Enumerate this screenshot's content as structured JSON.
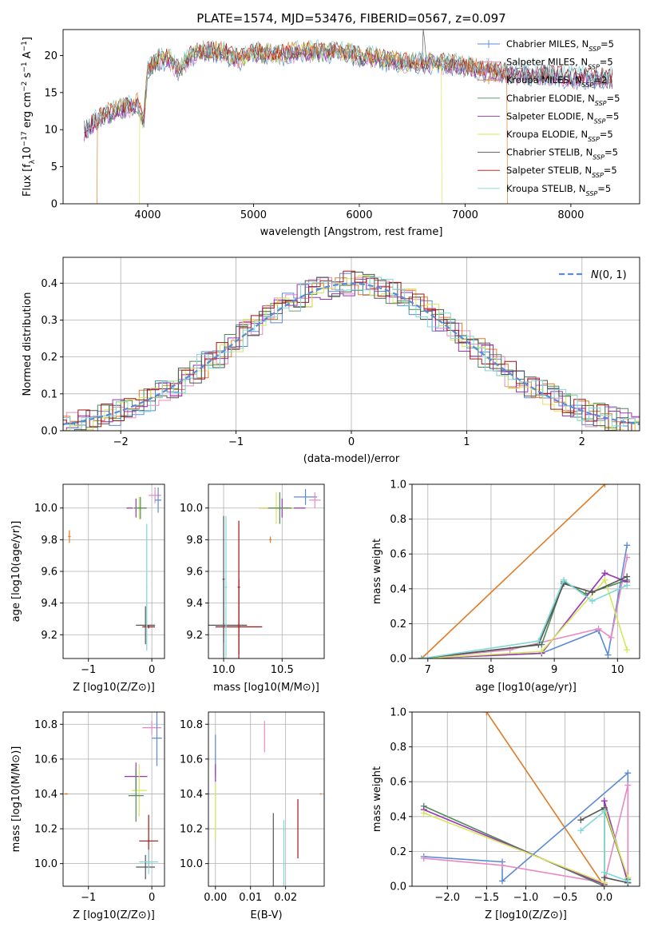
{
  "figure": {
    "title": "PLATE=1574, MJD=53476, FIBERID=0567, z=0.097"
  },
  "colors": {
    "chabrier_miles": "#5b8bd6",
    "salpeter_miles": "#e78ac3",
    "kroupa_miles": "#e07b26",
    "chabrier_elodie": "#4e8a5a",
    "salpeter_elodie": "#9b33b8",
    "kroupa_elodie": "#d4e85a",
    "chabrier_stelib": "#555555",
    "salpeter_stelib": "#a31515",
    "kroupa_stelib": "#7fd8d8",
    "gaussian": "#5b8bd6"
  },
  "chart_data": [
    {
      "id": "spectrum",
      "type": "line",
      "xlabel": "wavelength [Angstrom, rest frame]",
      "ylabel": "Flux [f_λ10^-17 erg cm^-2 s^-1 A^-1]",
      "xlim": [
        3200,
        8650
      ],
      "ylim": [
        0,
        23.5
      ],
      "xticks": [
        4000,
        5000,
        6000,
        7000,
        8000
      ],
      "yticks": [
        0,
        5,
        10,
        15,
        20
      ],
      "grid": false,
      "legend_position": "upper-right",
      "legend": [
        {
          "key": "chabrier_miles",
          "label": "Chabrier MILES, N_SSP=5",
          "marker": "+"
        },
        {
          "key": "salpeter_miles",
          "label": "Salpeter MILES, N_SSP=5",
          "marker": "+"
        },
        {
          "key": "kroupa_miles",
          "label": "Kroupa MILES, N_SSP=2",
          "marker": "+"
        },
        {
          "key": "chabrier_elodie",
          "label": "Chabrier ELODIE, N_SSP=5",
          "marker": ""
        },
        {
          "key": "salpeter_elodie",
          "label": "Salpeter ELODIE, N_SSP=5",
          "marker": ""
        },
        {
          "key": "kroupa_elodie",
          "label": "Kroupa ELODIE, N_SSP=5",
          "marker": ""
        },
        {
          "key": "chabrier_stelib",
          "label": "Chabrier STELIB, N_SSP=5",
          "marker": ""
        },
        {
          "key": "salpeter_stelib",
          "label": "Salpeter STELIB, N_SSP=5",
          "marker": ""
        },
        {
          "key": "kroupa_stelib",
          "label": "Kroupa STELIB, N_SSP=5",
          "marker": ""
        }
      ],
      "continuum": [
        [
          3400,
          9.8
        ],
        [
          3500,
          11.0
        ],
        [
          3600,
          12.0
        ],
        [
          3700,
          12.5
        ],
        [
          3800,
          13.0
        ],
        [
          3900,
          13.5
        ],
        [
          3960,
          11.0
        ],
        [
          4000,
          18.0
        ],
        [
          4100,
          19.5
        ],
        [
          4200,
          19.5
        ],
        [
          4300,
          18.0
        ],
        [
          4400,
          20.0
        ],
        [
          4500,
          20.5
        ],
        [
          4700,
          20.5
        ],
        [
          4860,
          19.5
        ],
        [
          5000,
          20.5
        ],
        [
          5200,
          20.0
        ],
        [
          5400,
          20.5
        ],
        [
          5600,
          20.5
        ],
        [
          5800,
          20.5
        ],
        [
          6000,
          20.0
        ],
        [
          6200,
          19.5
        ],
        [
          6400,
          19.0
        ],
        [
          6563,
          19.0
        ],
        [
          6800,
          19.0
        ],
        [
          7000,
          18.5
        ],
        [
          7200,
          18.0
        ],
        [
          7500,
          17.5
        ],
        [
          7800,
          17.5
        ],
        [
          8000,
          17.0
        ],
        [
          8300,
          17.0
        ],
        [
          8400,
          16.8
        ]
      ],
      "drops": [
        {
          "key": "kroupa_miles",
          "at": [
            3520,
            7400
          ]
        },
        {
          "key": "kroupa_elodie",
          "at": [
            3920,
            6780
          ]
        }
      ]
    },
    {
      "id": "residuals",
      "type": "line",
      "xlabel": "(data-model)/error",
      "ylabel": "Normed distribution",
      "xlim": [
        -2.5,
        2.5
      ],
      "ylim": [
        0,
        0.47
      ],
      "xticks": [
        -2,
        -1,
        0,
        1,
        2
      ],
      "yticks": [
        0.0,
        0.1,
        0.2,
        0.3,
        0.4
      ],
      "grid": true,
      "legend_position": "upper-right",
      "legend": [
        {
          "key": "gaussian",
          "label": "N(0,1)"
        }
      ],
      "bin_width": 0.1
    },
    {
      "id": "age_vs_Z",
      "type": "scatter",
      "xlabel": "Z [log10(Z/Z⊙)]",
      "ylabel": "age [log10(age/yr)]",
      "xlim": [
        -1.4,
        0.2
      ],
      "ylim": [
        9.05,
        10.15
      ],
      "xticks": [
        -1,
        0
      ],
      "yticks": [
        9.2,
        9.4,
        9.6,
        9.8,
        10.0
      ],
      "grid": true,
      "points": [
        {
          "key": "kroupa_miles",
          "x": -1.3,
          "y": 9.82,
          "xerr": 0.02,
          "yerr": 0.04
        },
        {
          "key": "salpeter_miles",
          "x": 0.05,
          "y": 10.08,
          "xerr": 0.1,
          "yerr": 0.05
        },
        {
          "key": "chabrier_miles",
          "x": 0.1,
          "y": 10.05,
          "xerr": 0.05,
          "yerr": 0.08
        },
        {
          "key": "salpeter_elodie",
          "x": -0.25,
          "y": 10.0,
          "xerr": 0.15,
          "yerr": 0.06
        },
        {
          "key": "kroupa_elodie",
          "x": -0.2,
          "y": 10.0,
          "xerr": 0.1,
          "yerr": 0.07
        },
        {
          "key": "chabrier_elodie",
          "x": -0.18,
          "y": 10.0,
          "xerr": 0.1,
          "yerr": 0.07
        },
        {
          "key": "chabrier_stelib",
          "x": -0.1,
          "y": 9.26,
          "xerr": 0.15,
          "yerr": 0.12
        },
        {
          "key": "salpeter_stelib",
          "x": -0.05,
          "y": 9.25,
          "xerr": 0.1,
          "yerr": 0.01
        },
        {
          "key": "kroupa_stelib",
          "x": -0.08,
          "y": 9.5,
          "xerr": 0.01,
          "yerr": 0.4
        }
      ]
    },
    {
      "id": "age_vs_mass",
      "type": "scatter",
      "xlabel": "mass [log10(M/M⊙)]",
      "ylabel": "",
      "xlim": [
        9.87,
        10.86
      ],
      "ylim": [
        9.05,
        10.15
      ],
      "xticks": [
        10.0,
        10.5
      ],
      "yticks": [
        9.2,
        9.4,
        9.6,
        9.8,
        10.0
      ],
      "grid": true,
      "points": [
        {
          "key": "chabrier_stelib",
          "x": 10.0,
          "y": 9.26,
          "xerr": 0.2,
          "yerr": 0.3
        },
        {
          "key": "salpeter_stelib",
          "x": 10.13,
          "y": 9.25,
          "xerr": 0.2,
          "yerr": 0.3
        },
        {
          "key": "kroupa_stelib",
          "x": 10.02,
          "y": 9.5,
          "xerr": 0.01,
          "yerr": 0.45
        },
        {
          "key": "chabrier_stelib",
          "x": 10.0,
          "y": 9.55,
          "xerr": 0.01,
          "yerr": 0.4
        },
        {
          "key": "salpeter_stelib",
          "x": 10.13,
          "y": 9.5,
          "xerr": 0.01,
          "yerr": 0.42
        },
        {
          "key": "kroupa_miles",
          "x": 10.4,
          "y": 9.8,
          "xerr": 0.01,
          "yerr": 0.02
        },
        {
          "key": "salpeter_elodie",
          "x": 10.5,
          "y": 10.0,
          "xerr": 0.2,
          "yerr": 0.06
        },
        {
          "key": "kroupa_elodie",
          "x": 10.45,
          "y": 10.0,
          "xerr": 0.15,
          "yerr": 0.1
        },
        {
          "key": "chabrier_elodie",
          "x": 10.48,
          "y": 10.0,
          "xerr": 0.1,
          "yerr": 0.1
        },
        {
          "key": "chabrier_miles",
          "x": 10.7,
          "y": 10.07,
          "xerr": 0.1,
          "yerr": 0.05
        },
        {
          "key": "salpeter_miles",
          "x": 10.78,
          "y": 10.05,
          "xerr": 0.05,
          "yerr": 0.05
        }
      ]
    },
    {
      "id": "massweight_vs_age",
      "type": "line",
      "xlabel": "age [log10(age/yr)]",
      "ylabel": "mass weight",
      "xlim": [
        6.75,
        10.35
      ],
      "ylim": [
        0,
        1.0
      ],
      "xticks": [
        7,
        8,
        9,
        10
      ],
      "yticks": [
        0.0,
        0.2,
        0.4,
        0.6,
        0.8,
        1.0
      ],
      "grid": true,
      "series": [
        {
          "key": "kroupa_miles",
          "x": [
            6.9,
            9.8
          ],
          "y": [
            0.0,
            1.0
          ]
        },
        {
          "key": "chabrier_miles",
          "x": [
            6.9,
            8.8,
            9.7,
            9.85,
            10.15
          ],
          "y": [
            0.0,
            0.03,
            0.16,
            0.02,
            0.65
          ]
        },
        {
          "key": "salpeter_miles",
          "x": [
            6.9,
            8.3,
            9.7,
            9.9,
            10.15
          ],
          "y": [
            0.0,
            0.05,
            0.17,
            0.12,
            0.58
          ]
        },
        {
          "key": "chabrier_elodie",
          "x": [
            6.9,
            8.8,
            9.15,
            9.5,
            10.15
          ],
          "y": [
            0.0,
            0.08,
            0.44,
            0.37,
            0.45
          ]
        },
        {
          "key": "salpeter_elodie",
          "x": [
            6.9,
            8.8,
            9.8,
            10.15
          ],
          "y": [
            0.0,
            0.03,
            0.49,
            0.44
          ]
        },
        {
          "key": "kroupa_elodie",
          "x": [
            6.9,
            8.8,
            9.8,
            10.15
          ],
          "y": [
            0.0,
            0.04,
            0.45,
            0.05
          ]
        },
        {
          "key": "chabrier_stelib",
          "x": [
            6.9,
            8.75,
            9.15,
            9.6,
            10.15
          ],
          "y": [
            0.0,
            0.08,
            0.43,
            0.38,
            0.47
          ]
        },
        {
          "key": "kroupa_stelib",
          "x": [
            6.9,
            8.75,
            9.15,
            9.6,
            10.15
          ],
          "y": [
            0.0,
            0.1,
            0.45,
            0.33,
            0.42
          ]
        }
      ]
    },
    {
      "id": "mass_vs_Z",
      "type": "scatter",
      "xlabel": "Z [log10(Z/Z⊙)]",
      "ylabel": "mass [log10(M/M⊙)]",
      "xlim": [
        -1.4,
        0.2
      ],
      "ylim": [
        9.87,
        10.87
      ],
      "xticks": [
        -1,
        0
      ],
      "yticks": [
        10.0,
        10.2,
        10.4,
        10.6,
        10.8
      ],
      "grid": true,
      "points": [
        {
          "key": "kroupa_miles",
          "x": -1.35,
          "y": 10.4,
          "xerr": 0.03,
          "yerr": 0.005
        },
        {
          "key": "salpeter_miles",
          "x": 0.0,
          "y": 10.78,
          "xerr": 0.15,
          "yerr": 0.04
        },
        {
          "key": "chabrier_miles",
          "x": 0.08,
          "y": 10.72,
          "xerr": 0.08,
          "yerr": 0.16
        },
        {
          "key": "salpeter_elodie",
          "x": -0.25,
          "y": 10.5,
          "xerr": 0.18,
          "yerr": 0.08
        },
        {
          "key": "kroupa_elodie",
          "x": -0.2,
          "y": 10.42,
          "xerr": 0.12,
          "yerr": 0.15
        },
        {
          "key": "chabrier_elodie",
          "x": -0.25,
          "y": 10.39,
          "xerr": 0.12,
          "yerr": 0.15
        },
        {
          "key": "chabrier_stelib",
          "x": -0.1,
          "y": 9.98,
          "xerr": 0.15,
          "yerr": 0.07
        },
        {
          "key": "salpeter_stelib",
          "x": -0.05,
          "y": 10.13,
          "xerr": 0.15,
          "yerr": 0.15
        },
        {
          "key": "kroupa_stelib",
          "x": -0.05,
          "y": 10.01,
          "xerr": 0.15,
          "yerr": 0.07
        }
      ]
    },
    {
      "id": "mass_vs_EBV",
      "type": "scatter",
      "xlabel": "E(B-V)",
      "ylabel": "",
      "xlim": [
        -0.002,
        0.031
      ],
      "ylim": [
        9.87,
        10.87
      ],
      "xticks": [
        0.0,
        0.01,
        0.02
      ],
      "yticks": [
        10.0,
        10.2,
        10.4,
        10.6,
        10.8
      ],
      "grid": true,
      "points": [
        {
          "key": "chabrier_miles",
          "x": 0.0,
          "y": 10.62,
          "xerr": 0.0,
          "yerr": 0.12
        },
        {
          "key": "salpeter_elodie",
          "x": 0.0,
          "y": 10.52,
          "xerr": 0.0,
          "yerr": 0.05
        },
        {
          "key": "kroupa_elodie",
          "x": 0.0,
          "y": 10.3,
          "xerr": 0.0,
          "yerr": 0.16
        },
        {
          "key": "salpeter_miles",
          "x": 0.014,
          "y": 10.73,
          "xerr": 0.0,
          "yerr": 0.09
        },
        {
          "key": "chabrier_stelib",
          "x": 0.0165,
          "y": 10.03,
          "xerr": 0.0,
          "yerr": 0.26
        },
        {
          "key": "kroupa_stelib",
          "x": 0.0195,
          "y": 10.03,
          "xerr": 0.0,
          "yerr": 0.22
        },
        {
          "key": "salpeter_stelib",
          "x": 0.0235,
          "y": 10.2,
          "xerr": 0.0,
          "yerr": 0.17
        },
        {
          "key": "kroupa_miles",
          "x": 0.03,
          "y": 10.4,
          "xerr": 0.0003,
          "yerr": 0.003
        }
      ]
    },
    {
      "id": "massweight_vs_Z",
      "type": "line",
      "xlabel": "Z [log10(Z/Z⊙)]",
      "ylabel": "mass weight",
      "xlim": [
        -2.45,
        0.45
      ],
      "ylim": [
        0,
        1.0
      ],
      "xticks": [
        -2.0,
        -1.5,
        -1.0,
        -0.5,
        0.0
      ],
      "yticks": [
        0.0,
        0.2,
        0.4,
        0.6,
        0.8,
        1.0
      ],
      "grid": true,
      "series": [
        {
          "key": "kroupa_miles",
          "x": [
            -1.5,
            0.0
          ],
          "y": [
            1.0,
            0.0
          ]
        },
        {
          "key": "chabrier_miles",
          "x": [
            -2.3,
            -1.3,
            -1.3,
            0.3,
            0.3
          ],
          "y": [
            0.17,
            0.14,
            0.03,
            0.65,
            0.02
          ]
        },
        {
          "key": "salpeter_miles",
          "x": [
            -2.3,
            -1.3,
            0.0,
            0.3,
            0.3
          ],
          "y": [
            0.16,
            0.12,
            0.02,
            0.58,
            0.05
          ]
        },
        {
          "key": "chabrier_elodie",
          "x": [
            -2.3,
            0.0,
            0.0,
            0.3
          ],
          "y": [
            0.46,
            0.0,
            0.44,
            0.04
          ]
        },
        {
          "key": "salpeter_elodie",
          "x": [
            -2.3,
            0.0,
            0.0,
            0.3
          ],
          "y": [
            0.44,
            0.01,
            0.49,
            0.02
          ]
        },
        {
          "key": "kroupa_elodie",
          "x": [
            -2.3,
            0.0,
            0.0,
            0.3
          ],
          "y": [
            0.42,
            0.02,
            0.45,
            0.05
          ]
        },
        {
          "key": "chabrier_stelib",
          "x": [
            -0.3,
            0.0,
            0.0,
            0.3
          ],
          "y": [
            0.38,
            0.45,
            0.05,
            0.02
          ]
        },
        {
          "key": "kroupa_stelib",
          "x": [
            -0.3,
            0.0,
            0.0,
            0.3
          ],
          "y": [
            0.32,
            0.43,
            0.08,
            0.03
          ]
        }
      ]
    }
  ]
}
